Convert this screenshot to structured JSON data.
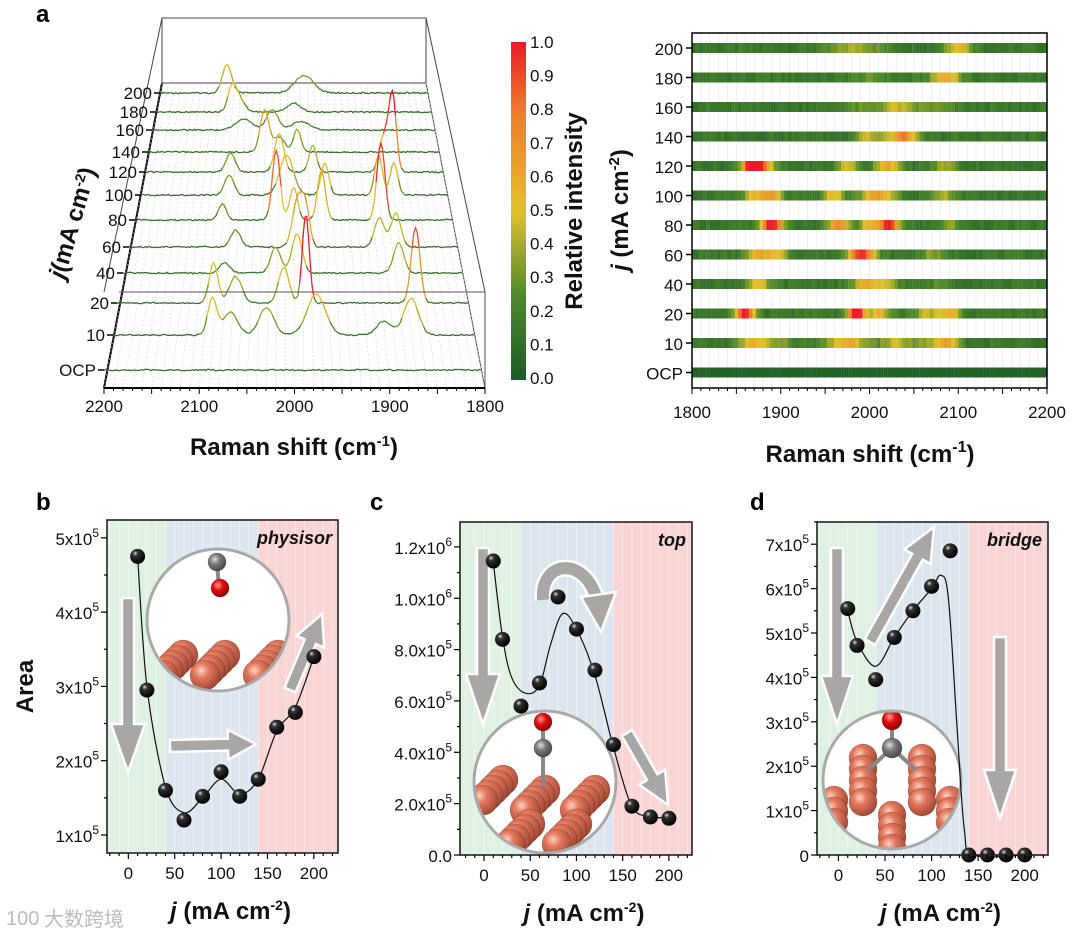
{
  "panel_letters": {
    "a": "a",
    "b": "b",
    "c": "c",
    "d": "d"
  },
  "colors": {
    "low": "#1c5a28",
    "mid": "#e2c22c",
    "high": "#ec1a2a",
    "region_green": "#dff1e3",
    "region_blue": "#dde6ef",
    "region_pink": "#f9d5d5",
    "cu": "#e3785e",
    "carbon": "#7a7a7a",
    "oxygen": "#e01010",
    "arrow": "#a9a6a6"
  },
  "watermark": {
    "text": "大数跨境",
    "logo": "100"
  },
  "chart_data": [
    {
      "id": "a-waterfall",
      "type": "line",
      "title": "",
      "xlabel": "Raman shift (cm",
      "xlabel_sup": "-1",
      "xlabel_close": ")",
      "xlim": [
        2200,
        1800
      ],
      "xticks": [
        "2200",
        "2100",
        "2000",
        "1900",
        "1800"
      ],
      "xtick_values": [
        2200,
        2100,
        2000,
        1900,
        1800
      ],
      "ylabel": "j",
      "ylabel_unit": "(mA cm",
      "ylabel_sup": "-2",
      "ylabel_close": ")",
      "colorbar": {
        "label": "Relative intensity",
        "range": [
          0,
          1
        ],
        "ticks": [
          "1.0",
          "0.9",
          "0.8",
          "0.7",
          "0.6",
          "0.5",
          "0.4",
          "0.3",
          "0.2",
          "0.1",
          "0.0"
        ]
      },
      "series": [
        {
          "name": "200",
          "peaks": [
            [
              1985,
              0.25,
              14
            ],
            [
              2100,
              0.4,
              7
            ]
          ]
        },
        {
          "name": "180",
          "peaks": [
            [
              2090,
              0.3,
              6
            ],
            [
              2080,
              0.2,
              8
            ],
            [
              2000,
              0.12,
              10
            ]
          ]
        },
        {
          "name": "160",
          "peaks": [
            [
              2030,
              0.28,
              8
            ],
            [
              2070,
              0.15,
              12
            ],
            [
              1990,
              0.12,
              12
            ]
          ]
        },
        {
          "name": "140",
          "peaks": [
            [
              1995,
              0.3,
              5
            ],
            [
              2040,
              0.55,
              6
            ],
            [
              2020,
              0.2,
              8
            ]
          ]
        },
        {
          "name": "120",
          "peaks": [
            [
              1868,
              1.0,
              5
            ],
            [
              1880,
              0.45,
              6
            ],
            [
              1975,
              0.35,
              5
            ],
            [
              2020,
              0.5,
              6
            ],
            [
              2085,
              0.25,
              6
            ]
          ]
        },
        {
          "name": "100",
          "peaks": [
            [
              1870,
              0.4,
              5
            ],
            [
              1890,
              0.5,
              5
            ],
            [
              1960,
              0.4,
              5
            ],
            [
              2010,
              0.5,
              9
            ],
            [
              2085,
              0.25,
              6
            ]
          ]
        },
        {
          "name": "80",
          "peaks": [
            [
              1890,
              0.95,
              5
            ],
            [
              1965,
              0.6,
              5
            ],
            [
              2000,
              0.4,
              5
            ],
            [
              2022,
              0.85,
              5
            ],
            [
              2090,
              0.2,
              5
            ]
          ]
        },
        {
          "name": "60",
          "peaks": [
            [
              1875,
              0.4,
              6
            ],
            [
              1895,
              0.35,
              6
            ],
            [
              1985,
              0.45,
              5
            ],
            [
              1995,
              0.55,
              6
            ],
            [
              2070,
              0.2,
              6
            ]
          ]
        },
        {
          "name": "40",
          "peaks": [
            [
              1875,
              0.35,
              6
            ],
            [
              1995,
              0.45,
              6
            ],
            [
              2020,
              0.3,
              6
            ],
            [
              2080,
              0.12,
              6
            ]
          ]
        },
        {
          "name": "20",
          "peaks": [
            [
              1860,
              0.85,
              5
            ],
            [
              1985,
              1.0,
              4
            ],
            [
              2010,
              0.4,
              6
            ],
            [
              2065,
              0.3,
              7
            ],
            [
              2090,
              0.45,
              5
            ]
          ]
        },
        {
          "name": "10",
          "peaks": [
            [
              1870,
              0.4,
              8
            ],
            [
              1900,
              0.15,
              8
            ],
            [
              1975,
              0.45,
              10
            ],
            [
              2030,
              0.3,
              8
            ],
            [
              2070,
              0.25,
              8
            ],
            [
              2090,
              0.4,
              5
            ]
          ]
        },
        {
          "name": "OCP",
          "peaks": []
        }
      ]
    },
    {
      "id": "a-heatmap",
      "type": "heatmap",
      "xlabel": "Raman shift (cm",
      "xlabel_sup": "-1",
      "xlabel_close": ")",
      "xlim": [
        1800,
        2200
      ],
      "xticks": [
        "1800",
        "1900",
        "2000",
        "2100",
        "2200"
      ],
      "xtick_values": [
        1800,
        1900,
        2000,
        2100,
        2200
      ],
      "ylabel": "j",
      "ylabel_unit": "(mA cm",
      "ylabel_sup": "-2",
      "ylabel_close": ")",
      "rows_source": "a-waterfall",
      "row_labels": [
        "200",
        "180",
        "160",
        "140",
        "120",
        "100",
        "80",
        "60",
        "40",
        "20",
        "10",
        "OCP"
      ]
    },
    {
      "id": "b",
      "type": "scatter",
      "site_label": "physisor",
      "xlabel": "j",
      "xlabel_unit": "(mA cm",
      "xlabel_sup": "-2",
      "xlabel_close": ")",
      "ylabel": "Area",
      "xlim": [
        -23,
        226
      ],
      "ylim": [
        75700,
        524000
      ],
      "xticks": [
        "0",
        "50",
        "100",
        "150",
        "200"
      ],
      "xtick_values": [
        0,
        50,
        100,
        150,
        200
      ],
      "ytick_values": [
        100000,
        200000,
        300000,
        400000,
        500000
      ],
      "yticks": [
        {
          "m": "1x10",
          "e": "5"
        },
        {
          "m": "2x10",
          "e": "5"
        },
        {
          "m": "3x10",
          "e": "5"
        },
        {
          "m": "4x10",
          "e": "5"
        },
        {
          "m": "5x10",
          "e": "5"
        }
      ],
      "regions": [
        [
          -23,
          40,
          "green"
        ],
        [
          40,
          140,
          "blue"
        ],
        [
          140,
          226,
          "pink"
        ]
      ],
      "x": [
        10,
        20,
        40,
        60,
        80,
        100,
        120,
        140,
        160,
        180,
        200
      ],
      "y": [
        475000,
        295000,
        160000,
        120000,
        152000,
        185000,
        152000,
        175000,
        245000,
        265000,
        340000
      ],
      "fit": [
        [
          10,
          475000
        ],
        [
          20,
          300000
        ],
        [
          40,
          165000
        ],
        [
          60,
          130000
        ],
        [
          80,
          150000
        ],
        [
          100,
          175000
        ],
        [
          120,
          155000
        ],
        [
          140,
          175000
        ],
        [
          160,
          240000
        ],
        [
          180,
          272000
        ],
        [
          200,
          340000
        ]
      ]
    },
    {
      "id": "c",
      "type": "scatter",
      "site_label": "top",
      "xlabel": "j",
      "xlabel_unit": "(mA cm",
      "xlabel_sup": "-2",
      "xlabel_close": ")",
      "ylabel": "",
      "xlim": [
        -26,
        225
      ],
      "ylim": [
        0,
        1297000
      ],
      "xticks": [
        "0",
        "50",
        "100",
        "150",
        "200"
      ],
      "xtick_values": [
        0,
        50,
        100,
        150,
        200
      ],
      "ytick_values": [
        0,
        200000,
        400000,
        600000,
        800000,
        1000000,
        1200000
      ],
      "yticks": [
        {
          "m": "0.0",
          "e": ""
        },
        {
          "m": "2.0x10",
          "e": "5"
        },
        {
          "m": "4.0x10",
          "e": "5"
        },
        {
          "m": "6.0x10",
          "e": "5"
        },
        {
          "m": "8.0x10",
          "e": "5"
        },
        {
          "m": "1.0x10",
          "e": "6"
        },
        {
          "m": "1.2x10",
          "e": "6"
        }
      ],
      "regions": [
        [
          -26,
          40,
          "green"
        ],
        [
          40,
          140,
          "blue"
        ],
        [
          140,
          225,
          "pink"
        ]
      ],
      "x": [
        10,
        20,
        40,
        60,
        80,
        100,
        120,
        140,
        160,
        180,
        200
      ],
      "y": [
        1145000,
        840000,
        580000,
        670000,
        1005000,
        880000,
        720000,
        430000,
        190000,
        148000,
        143000
      ],
      "fit": [
        [
          10,
          1140000
        ],
        [
          20,
          850000
        ],
        [
          30,
          690000
        ],
        [
          45,
          630000
        ],
        [
          60,
          660000
        ],
        [
          72,
          820000
        ],
        [
          85,
          940000
        ],
        [
          100,
          880000
        ],
        [
          120,
          700000
        ],
        [
          140,
          420000
        ],
        [
          160,
          190000
        ],
        [
          180,
          150000
        ],
        [
          200,
          145000
        ]
      ]
    },
    {
      "id": "d",
      "type": "scatter",
      "site_label": "bridge",
      "xlabel": "j",
      "xlabel_unit": "(mA cm",
      "xlabel_sup": "-2",
      "xlabel_close": ")",
      "ylabel": "",
      "xlim": [
        -23,
        225
      ],
      "ylim": [
        0,
        750000
      ],
      "xticks": [
        "0",
        "50",
        "100",
        "150",
        "200"
      ],
      "xtick_values": [
        0,
        50,
        100,
        150,
        200
      ],
      "ytick_values": [
        0,
        100000,
        200000,
        300000,
        400000,
        500000,
        600000,
        700000
      ],
      "yticks": [
        {
          "m": "0",
          "e": ""
        },
        {
          "m": "1x10",
          "e": "5"
        },
        {
          "m": "2x10",
          "e": "5"
        },
        {
          "m": "3x10",
          "e": "5"
        },
        {
          "m": "4x10",
          "e": "5"
        },
        {
          "m": "5x10",
          "e": "5"
        },
        {
          "m": "6x10",
          "e": "5"
        },
        {
          "m": "7x10",
          "e": "5"
        }
      ],
      "regions": [
        [
          -23,
          40,
          "green"
        ],
        [
          40,
          140,
          "blue"
        ],
        [
          140,
          225,
          "pink"
        ]
      ],
      "x": [
        10,
        20,
        40,
        60,
        80,
        100,
        120,
        140,
        160,
        180,
        200
      ],
      "y": [
        555000,
        472000,
        395000,
        490000,
        550000,
        605000,
        685000,
        0,
        0,
        0,
        0
      ],
      "fit": [
        [
          10,
          550000
        ],
        [
          20,
          480000
        ],
        [
          40,
          425000
        ],
        [
          60,
          490000
        ],
        [
          80,
          550000
        ],
        [
          100,
          600000
        ],
        [
          110,
          630000
        ],
        [
          118,
          580000
        ],
        [
          127,
          300000
        ],
        [
          135,
          60000
        ],
        [
          145,
          0
        ],
        [
          200,
          0
        ]
      ]
    }
  ]
}
